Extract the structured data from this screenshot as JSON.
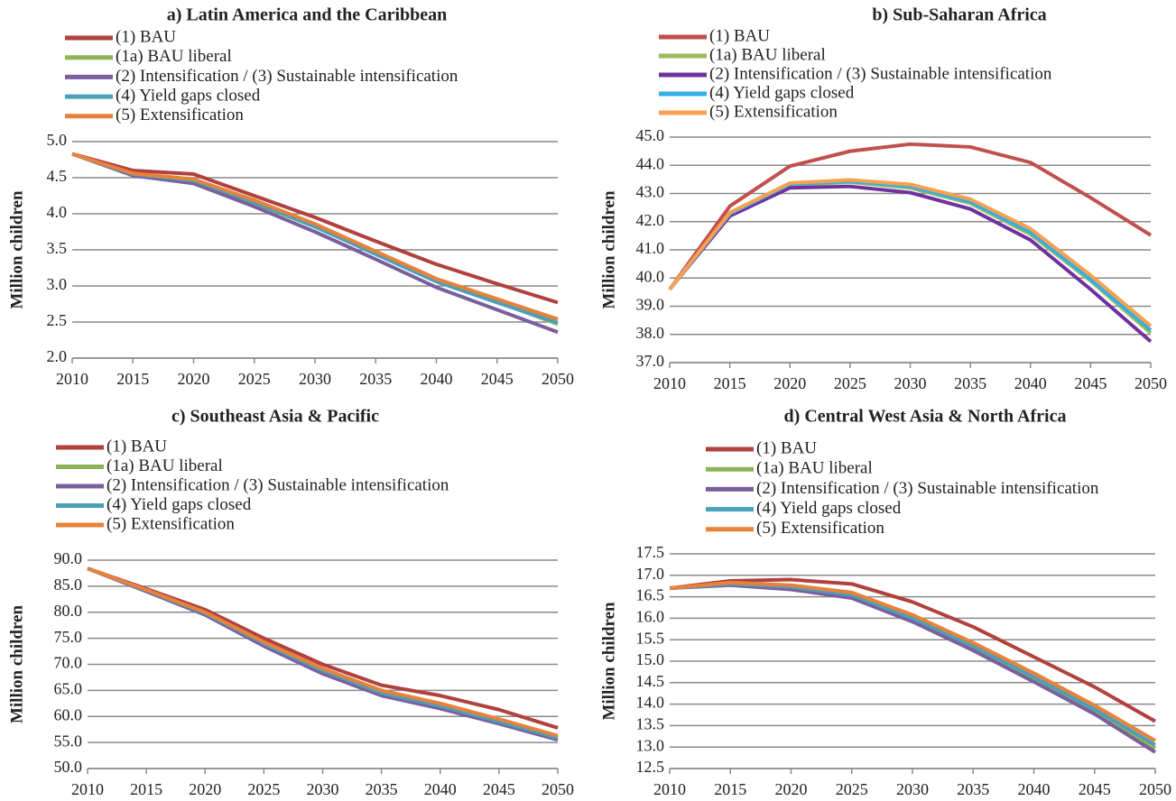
{
  "chart_data": [
    {
      "type": "line",
      "title": "a) Latin America and the Caribbean",
      "ylabel": "Million children",
      "x": [
        2010,
        2015,
        2020,
        2025,
        2030,
        2035,
        2040,
        2045,
        2050
      ],
      "xlim": [
        2010,
        2050
      ],
      "xticks": [
        2010,
        2015,
        2020,
        2025,
        2030,
        2035,
        2040,
        2045,
        2050
      ],
      "ylim": [
        2,
        5
      ],
      "yticks": [
        {
          "value": 2,
          "label": "2.0"
        },
        2.5,
        {
          "value": 3,
          "label": "3.0"
        },
        3.5,
        {
          "value": 4,
          "label": "4.0"
        },
        4.5,
        {
          "value": 5,
          "label": "5.0"
        }
      ],
      "grid": true,
      "series": [
        {
          "name": "(1) BAU",
          "color": "#b0413e",
          "values": [
            4.83,
            4.6,
            4.55,
            4.25,
            3.95,
            3.62,
            3.3,
            3.03,
            2.77
          ]
        },
        {
          "name": "(1a) BAU liberal",
          "color": "#8db356",
          "values": [
            4.83,
            4.55,
            4.45,
            4.15,
            3.82,
            3.45,
            3.07,
            2.78,
            2.47
          ]
        },
        {
          "name": "(2) Intensification / (3) Sustainable intensification",
          "color": "#7b5e9e",
          "values": [
            4.83,
            4.53,
            4.42,
            4.1,
            3.75,
            3.37,
            2.98,
            2.67,
            2.36
          ]
        },
        {
          "name": "(4) Yield gaps closed",
          "color": "#4aa0b8",
          "values": [
            4.83,
            4.55,
            4.46,
            4.16,
            3.82,
            3.44,
            3.06,
            2.77,
            2.49
          ]
        },
        {
          "name": "(5) Extensification",
          "color": "#e8823a",
          "values": [
            4.83,
            4.56,
            4.48,
            4.19,
            3.86,
            3.48,
            3.1,
            2.82,
            2.54
          ]
        }
      ]
    },
    {
      "type": "line",
      "title": "b) Sub-Saharan Africa",
      "ylabel": "Million children",
      "x": [
        2010,
        2015,
        2020,
        2025,
        2030,
        2035,
        2040,
        2045,
        2050
      ],
      "xlim": [
        2010,
        2050
      ],
      "xticks": [
        2010,
        2015,
        2020,
        2025,
        2030,
        2035,
        2040,
        2045,
        2050
      ],
      "ylim": [
        37,
        45
      ],
      "yticks": [
        {
          "value": 37,
          "label": "37.0"
        },
        {
          "value": 38,
          "label": "38.0"
        },
        {
          "value": 39,
          "label": "39.0"
        },
        {
          "value": 40,
          "label": "40.0"
        },
        {
          "value": 41,
          "label": "41.0"
        },
        {
          "value": 42,
          "label": "42.0"
        },
        {
          "value": 43,
          "label": "43.0"
        },
        {
          "value": 44,
          "label": "44.0"
        },
        {
          "value": 45,
          "label": "45.0"
        }
      ],
      "grid": true,
      "series": [
        {
          "name": "(1) BAU",
          "color": "#c0504d",
          "values": [
            39.6,
            42.55,
            43.97,
            44.5,
            44.75,
            44.65,
            44.1,
            42.85,
            41.52
          ]
        },
        {
          "name": "(1a) BAU liberal",
          "color": "#9bbb59",
          "values": [
            39.6,
            42.25,
            43.3,
            43.4,
            43.2,
            42.65,
            41.55,
            39.9,
            38.05
          ]
        },
        {
          "name": "(2) Intensification / (3) Sustainable intensification",
          "color": "#7030a0",
          "values": [
            39.6,
            42.2,
            43.2,
            43.25,
            43.03,
            42.45,
            41.35,
            39.6,
            37.75
          ]
        },
        {
          "name": "(4) Yield gaps closed",
          "color": "#33b0e8",
          "values": [
            39.6,
            42.28,
            43.33,
            43.43,
            43.25,
            42.7,
            41.62,
            39.95,
            38.15
          ]
        },
        {
          "name": "(5) Extensification",
          "color": "#f7a050",
          "values": [
            39.6,
            42.32,
            43.37,
            43.48,
            43.32,
            42.8,
            41.75,
            40.1,
            38.3
          ]
        }
      ]
    },
    {
      "type": "line",
      "title": "c) Southeast Asia & Pacific",
      "ylabel": "Million children",
      "x": [
        2010,
        2015,
        2020,
        2025,
        2030,
        2035,
        2040,
        2045,
        2050
      ],
      "xlim": [
        2010,
        2050
      ],
      "xticks": [
        2010,
        2015,
        2020,
        2025,
        2030,
        2035,
        2040,
        2045,
        2050
      ],
      "ylim": [
        50,
        90
      ],
      "yticks": [
        {
          "value": 50,
          "label": "50.0"
        },
        {
          "value": 55,
          "label": "55.0"
        },
        {
          "value": 60,
          "label": "60.0"
        },
        {
          "value": 65,
          "label": "65.0"
        },
        {
          "value": 70,
          "label": "70.0"
        },
        {
          "value": 75,
          "label": "75.0"
        },
        {
          "value": 80,
          "label": "80.0"
        },
        {
          "value": 85,
          "label": "85.0"
        },
        {
          "value": 90,
          "label": "90.0"
        }
      ],
      "grid": true,
      "series": [
        {
          "name": "(1) BAU",
          "color": "#b0413e",
          "values": [
            88.4,
            84.5,
            80.5,
            75.0,
            70.0,
            66.0,
            64.0,
            61.3,
            57.8
          ]
        },
        {
          "name": "(1a) BAU liberal",
          "color": "#8db356",
          "values": [
            88.4,
            84.2,
            79.8,
            74.0,
            68.8,
            64.5,
            62.0,
            59.0,
            56.0
          ]
        },
        {
          "name": "(2) Intensification / (3) Sustainable intensification",
          "color": "#7b5e9e",
          "values": [
            88.4,
            84.0,
            79.5,
            73.5,
            68.2,
            64.0,
            61.5,
            58.6,
            55.5
          ]
        },
        {
          "name": "(4) Yield gaps closed",
          "color": "#4aa0b8",
          "values": [
            88.4,
            84.2,
            79.8,
            74.0,
            68.8,
            64.5,
            62.0,
            59.0,
            55.9
          ]
        },
        {
          "name": "(5) Extensification",
          "color": "#e8823a",
          "values": [
            88.4,
            84.3,
            80.0,
            74.3,
            69.2,
            65.0,
            62.5,
            59.5,
            56.3
          ]
        }
      ]
    },
    {
      "type": "line",
      "title": "d) Central West Asia & North Africa",
      "ylabel": "Million children",
      "x": [
        2010,
        2015,
        2020,
        2025,
        2030,
        2035,
        2040,
        2045,
        2050
      ],
      "xlim": [
        2010,
        2050
      ],
      "xticks": [
        2010,
        2015,
        2020,
        2025,
        2030,
        2035,
        2040,
        2045,
        2050
      ],
      "ylim": [
        12.5,
        17.5
      ],
      "yticks": [
        12.5,
        {
          "value": 13,
          "label": "13.0"
        },
        13.5,
        {
          "value": 14,
          "label": "14.0"
        },
        14.5,
        {
          "value": 15,
          "label": "15.0"
        },
        15.5,
        {
          "value": 16,
          "label": "16.0"
        },
        16.5,
        {
          "value": 17,
          "label": "17.0"
        },
        17.5
      ],
      "grid": true,
      "series": [
        {
          "name": "(1) BAU",
          "color": "#b0413e",
          "values": [
            16.7,
            16.87,
            16.9,
            16.8,
            16.38,
            15.8,
            15.1,
            14.4,
            13.6
          ]
        },
        {
          "name": "(1a) BAU liberal",
          "color": "#8db356",
          "values": [
            16.7,
            16.8,
            16.72,
            16.52,
            15.98,
            15.32,
            14.6,
            13.85,
            12.97
          ]
        },
        {
          "name": "(2) Intensification / (3) Sustainable intensification",
          "color": "#7b5e9e",
          "values": [
            16.7,
            16.77,
            16.67,
            16.47,
            15.92,
            15.25,
            14.52,
            13.77,
            12.88
          ]
        },
        {
          "name": "(4) Yield gaps closed",
          "color": "#4aa0b8",
          "values": [
            16.7,
            16.8,
            16.73,
            16.54,
            16.0,
            15.35,
            14.63,
            13.88,
            13.05
          ]
        },
        {
          "name": "(5) Extensification",
          "color": "#e8823a",
          "values": [
            16.7,
            16.83,
            16.77,
            16.6,
            16.08,
            15.43,
            14.72,
            13.97,
            13.15
          ]
        }
      ]
    }
  ]
}
